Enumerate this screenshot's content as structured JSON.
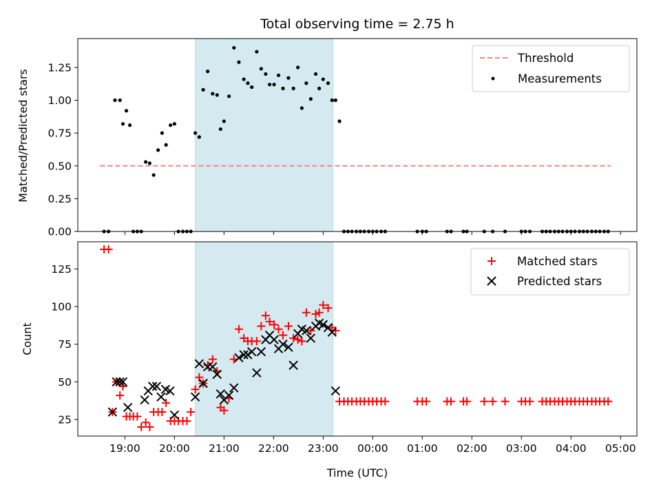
{
  "chart_data": [
    {
      "type": "scatter",
      "panel": "top",
      "title": "Total observing time = 2.75 h",
      "xlabel": "",
      "ylabel": "Matched/Predicted stars",
      "xlim": [
        18.05,
        29.33
      ],
      "ylim": [
        0,
        1.47
      ],
      "yticks": [
        0.0,
        0.25,
        0.5,
        0.75,
        1.0,
        1.25
      ],
      "ytick_labels": [
        "0.00",
        "0.25",
        "0.50",
        "0.75",
        "1.00",
        "1.25"
      ],
      "shaded_x": [
        20.42,
        23.2
      ],
      "shade_color": "#d4eaf0",
      "legend_position": "top-right",
      "threshold": {
        "name": "Threshold",
        "y": 0.5,
        "x": [
          18.5,
          28.8
        ],
        "color": "#ff7f7f"
      },
      "series": [
        {
          "name": "Measurements",
          "color": "#000000",
          "marker": "dot",
          "x": [
            18.58,
            18.67,
            18.8,
            18.9,
            18.96,
            19.03,
            19.1,
            19.17,
            19.25,
            19.33,
            19.42,
            19.5,
            19.58,
            19.67,
            19.75,
            19.83,
            19.92,
            20.0,
            20.08,
            20.17,
            20.25,
            20.33,
            20.42,
            20.5,
            20.58,
            20.67,
            20.77,
            20.86,
            20.93,
            21.0,
            21.1,
            21.2,
            21.3,
            21.4,
            21.48,
            21.56,
            21.66,
            21.75,
            21.84,
            21.92,
            22.01,
            22.1,
            22.19,
            22.3,
            22.4,
            22.49,
            22.57,
            22.66,
            22.75,
            22.85,
            22.92,
            23.0,
            23.1,
            23.18,
            23.25,
            23.33,
            23.42,
            23.5,
            23.58,
            23.67,
            23.75,
            23.83,
            23.92,
            24.0,
            24.08,
            24.17,
            24.25,
            24.9,
            25.0,
            25.08,
            25.5,
            25.58,
            25.83,
            25.9,
            26.25,
            26.42,
            26.67,
            27.0,
            27.08,
            27.17,
            27.42,
            27.5,
            27.58,
            27.67,
            27.75,
            27.83,
            27.92,
            28.0,
            28.08,
            28.17,
            28.25,
            28.33,
            28.42,
            28.5,
            28.58,
            28.67,
            28.75
          ],
          "y": [
            0.0,
            0.0,
            1.0,
            1.0,
            0.82,
            0.92,
            0.81,
            0.0,
            0.0,
            0.0,
            0.53,
            0.52,
            0.43,
            0.62,
            0.75,
            0.66,
            0.81,
            0.82,
            0.0,
            0.0,
            0.0,
            0.0,
            0.75,
            0.72,
            1.08,
            1.22,
            1.05,
            1.04,
            0.78,
            0.84,
            1.03,
            1.4,
            1.29,
            1.16,
            1.13,
            1.1,
            1.37,
            1.24,
            1.2,
            1.12,
            1.12,
            1.19,
            1.09,
            1.17,
            1.09,
            1.25,
            0.94,
            1.13,
            1.01,
            1.2,
            1.09,
            1.16,
            1.13,
            1.0,
            1.0,
            0.84,
            0.0,
            0.0,
            0.0,
            0.0,
            0.0,
            0.0,
            0.0,
            0.0,
            0.0,
            0.0,
            0.0,
            0.0,
            0.0,
            0.0,
            0.0,
            0.0,
            0.0,
            0.0,
            0.0,
            0.0,
            0.0,
            0.0,
            0.0,
            0.0,
            0.0,
            0.0,
            0.0,
            0.0,
            0.0,
            0.0,
            0.0,
            0.0,
            0.0,
            0.0,
            0.0,
            0.0,
            0.0,
            0.0,
            0.0,
            0.0,
            0.0
          ]
        }
      ]
    },
    {
      "type": "scatter",
      "panel": "bottom",
      "title": "",
      "xlabel": "Time (UTC)",
      "ylabel": "Count",
      "xlim": [
        18.05,
        29.33
      ],
      "ylim": [
        14,
        143
      ],
      "yticks": [
        25,
        50,
        75,
        100,
        125
      ],
      "ytick_labels": [
        "25",
        "50",
        "75",
        "100",
        "125"
      ],
      "xticks": [
        19,
        20,
        21,
        22,
        23,
        24,
        25,
        26,
        27,
        28,
        29
      ],
      "xtick_labels": [
        "19:00",
        "20:00",
        "21:00",
        "22:00",
        "23:00",
        "00:00",
        "01:00",
        "02:00",
        "03:00",
        "04:00",
        "05:00"
      ],
      "shaded_x": [
        20.42,
        23.2
      ],
      "shade_color": "#d4eaf0",
      "legend_position": "top-right",
      "series": [
        {
          "name": "Matched stars",
          "color": "#ff0000",
          "marker": "plus",
          "x": [
            18.58,
            18.67,
            18.75,
            18.83,
            18.9,
            18.96,
            19.03,
            19.1,
            19.17,
            19.25,
            19.33,
            19.42,
            19.5,
            19.58,
            19.67,
            19.75,
            19.83,
            19.92,
            20.0,
            20.08,
            20.17,
            20.25,
            20.33,
            20.42,
            20.5,
            20.58,
            20.67,
            20.77,
            20.86,
            20.93,
            21.0,
            21.1,
            21.2,
            21.3,
            21.4,
            21.48,
            21.56,
            21.66,
            21.75,
            21.84,
            21.92,
            22.01,
            22.1,
            22.19,
            22.3,
            22.4,
            22.49,
            22.57,
            22.66,
            22.75,
            22.85,
            22.92,
            23.0,
            23.1,
            23.18,
            23.25,
            23.33,
            23.42,
            23.5,
            23.58,
            23.67,
            23.75,
            23.83,
            23.92,
            24.0,
            24.08,
            24.17,
            24.25,
            24.9,
            25.0,
            25.08,
            25.5,
            25.58,
            25.83,
            25.9,
            26.25,
            26.42,
            26.67,
            27.0,
            27.08,
            27.17,
            27.42,
            27.5,
            27.58,
            27.67,
            27.75,
            27.83,
            27.92,
            28.0,
            28.08,
            28.17,
            28.25,
            28.33,
            28.42,
            28.5,
            28.58,
            28.67,
            28.75
          ],
          "y": [
            138,
            138,
            30,
            50,
            41,
            47,
            27,
            27,
            27,
            27,
            20,
            23,
            20,
            30,
            30,
            30,
            36,
            24,
            24,
            24,
            24,
            24,
            30,
            45,
            53,
            49,
            61,
            65,
            57,
            33,
            31,
            39,
            65,
            85,
            79,
            77,
            77,
            77,
            87,
            94,
            90,
            88,
            85,
            81,
            87,
            79,
            78,
            77,
            96,
            84,
            95,
            96,
            101,
            99,
            86,
            84,
            37,
            37,
            37,
            37,
            37,
            37,
            37,
            37,
            37,
            37,
            37,
            37,
            37,
            37,
            37,
            37,
            37,
            37,
            37,
            37,
            37,
            37,
            37,
            37,
            37,
            37,
            37,
            37,
            37,
            37,
            37,
            37,
            37,
            37,
            37,
            37,
            37,
            37,
            37,
            37,
            37,
            37
          ]
        },
        {
          "name": "Predicted stars",
          "color": "#000000",
          "marker": "x",
          "x": [
            18.75,
            18.83,
            18.9,
            18.96,
            19.06,
            19.4,
            19.47,
            19.56,
            19.64,
            19.73,
            19.82,
            19.91,
            20.0,
            20.42,
            20.5,
            20.58,
            20.67,
            20.77,
            20.86,
            20.93,
            21.0,
            21.1,
            21.2,
            21.3,
            21.4,
            21.48,
            21.56,
            21.66,
            21.75,
            21.84,
            21.92,
            22.01,
            22.1,
            22.19,
            22.3,
            22.4,
            22.49,
            22.57,
            22.66,
            22.75,
            22.85,
            22.92,
            23.0,
            23.1,
            23.18,
            23.25
          ],
          "y": [
            30,
            50,
            50,
            50,
            33,
            38,
            44,
            47,
            47,
            40,
            45,
            44,
            28,
            40,
            62,
            49,
            60,
            60,
            55,
            42,
            38,
            41,
            46,
            66,
            68,
            68,
            70,
            56,
            70,
            78,
            81,
            78,
            72,
            75,
            73,
            61,
            82,
            85,
            84,
            79,
            87,
            89,
            88,
            86,
            83,
            44
          ]
        }
      ]
    }
  ]
}
